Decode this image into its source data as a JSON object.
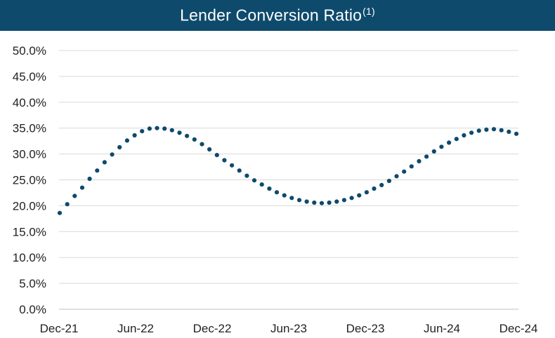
{
  "title": {
    "text": "Lender Conversion Ratio",
    "footnote": "(1)",
    "background": "#0e4a6c",
    "color": "#ffffff"
  },
  "chart_data": {
    "type": "line",
    "line_style": "dotted",
    "series_color": "#0e4a6c",
    "grid": true,
    "grid_color": "#d9d9d9",
    "legend": "none",
    "xlabel": "",
    "ylabel": "",
    "x_start": "Dec-21",
    "x_end": "Dec-24",
    "x_ticks": [
      "Dec-21",
      "Jun-22",
      "Dec-22",
      "Jun-23",
      "Dec-23",
      "Jun-24",
      "Dec-24"
    ],
    "y_ticks": [
      "0.0%",
      "5.0%",
      "10.0%",
      "15.0%",
      "20.0%",
      "25.0%",
      "30.0%",
      "35.0%",
      "40.0%",
      "45.0%",
      "50.0%"
    ],
    "ylim": [
      0,
      50
    ],
    "series": [
      {
        "values": [
          18.6,
          20.3,
          21.9,
          23.5,
          25.2,
          26.8,
          28.4,
          29.9,
          31.3,
          32.6,
          33.6,
          34.4,
          34.9,
          35.0,
          34.9,
          34.6,
          34.1,
          33.5,
          32.8,
          31.9,
          30.9,
          29.8,
          28.8,
          27.8,
          26.8,
          25.8,
          24.9,
          24.1,
          23.3,
          22.6,
          22.0,
          21.5,
          21.1,
          20.8,
          20.6,
          20.5,
          20.6,
          20.8,
          21.1,
          21.5,
          22.0,
          22.6,
          23.3,
          24.0,
          24.8,
          25.7,
          26.6,
          27.6,
          28.6,
          29.5,
          30.5,
          31.4,
          32.2,
          32.9,
          33.6,
          34.1,
          34.5,
          34.7,
          34.8,
          34.6,
          34.3,
          33.9
        ]
      }
    ]
  }
}
